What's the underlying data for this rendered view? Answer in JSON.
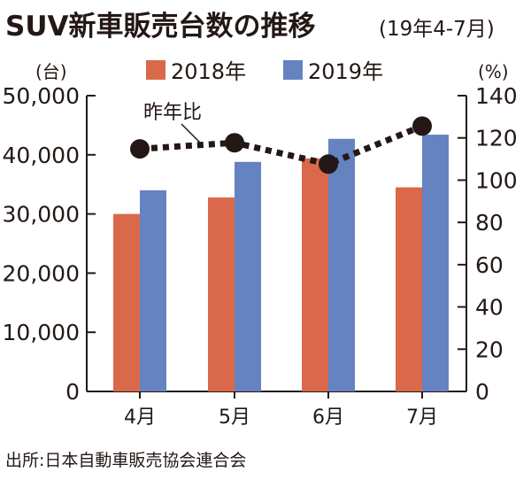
{
  "chart_data": {
    "type": "bar",
    "title": "SUV新車販売台数の推移",
    "subtitle": "(19年4-7月)",
    "ylabel": "(台)",
    "y2label": "(%)",
    "categories": [
      "4月",
      "5月",
      "6月",
      "7月"
    ],
    "ylim": [
      0,
      50000
    ],
    "yticks": [
      "0",
      "10,000",
      "20,000",
      "30,000",
      "40,000",
      "50,000"
    ],
    "y2lim": [
      0,
      140
    ],
    "y2ticks": [
      "0",
      "20",
      "40",
      "60",
      "80",
      "100",
      "120",
      "140"
    ],
    "legend_position": "top",
    "series": [
      {
        "name": "2018年",
        "type": "bar",
        "color": "#d9694a",
        "values": [
          30000,
          32800,
          39400,
          34500
        ]
      },
      {
        "name": "2019年",
        "type": "bar",
        "color": "#6582c1",
        "values": [
          34000,
          38800,
          42700,
          43400
        ]
      },
      {
        "name": "昨年比",
        "type": "line",
        "axis": "right",
        "style": "dotted",
        "color": "#231815",
        "values": [
          114.8,
          117.7,
          107.6,
          125.6
        ]
      }
    ],
    "source": "出所:日本自動車販売協会連合会"
  }
}
